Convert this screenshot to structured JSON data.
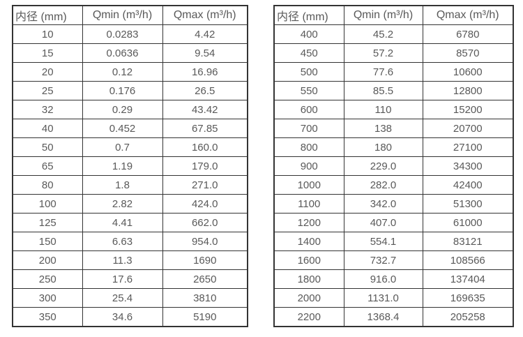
{
  "colors": {
    "background": "#ffffff",
    "border": "#333333",
    "text": "#595959"
  },
  "tables": [
    {
      "name": "spec-table-small-diameters",
      "headers": [
        "内径 (mm)",
        "Qmin (m³/h)",
        "Qmax (m³/h)"
      ],
      "rows": [
        [
          "10",
          "0.0283",
          "4.42"
        ],
        [
          "15",
          "0.0636",
          "9.54"
        ],
        [
          "20",
          "0.12",
          "16.96"
        ],
        [
          "25",
          "0.176",
          "26.5"
        ],
        [
          "32",
          "0.29",
          "43.42"
        ],
        [
          "40",
          "0.452",
          "67.85"
        ],
        [
          "50",
          "0.7",
          "160.0"
        ],
        [
          "65",
          "1.19",
          "179.0"
        ],
        [
          "80",
          "1.8",
          "271.0"
        ],
        [
          "100",
          "2.82",
          "424.0"
        ],
        [
          "125",
          "4.41",
          "662.0"
        ],
        [
          "150",
          "6.63",
          "954.0"
        ],
        [
          "200",
          "11.3",
          "1690"
        ],
        [
          "250",
          "17.6",
          "2650"
        ],
        [
          "300",
          "25.4",
          "3810"
        ],
        [
          "350",
          "34.6",
          "5190"
        ]
      ]
    },
    {
      "name": "spec-table-large-diameters",
      "headers": [
        "内径 (mm)",
        "Qmin (m³/h)",
        "Qmax (m³/h)"
      ],
      "rows": [
        [
          "400",
          "45.2",
          "6780"
        ],
        [
          "450",
          "57.2",
          "8570"
        ],
        [
          "500",
          "77.6",
          "10600"
        ],
        [
          "550",
          "85.5",
          "12800"
        ],
        [
          "600",
          "110",
          "15200"
        ],
        [
          "700",
          "138",
          "20700"
        ],
        [
          "800",
          "180",
          "27100"
        ],
        [
          "900",
          "229.0",
          "34300"
        ],
        [
          "1000",
          "282.0",
          "42400"
        ],
        [
          "1100",
          "342.0",
          "51300"
        ],
        [
          "1200",
          "407.0",
          "61000"
        ],
        [
          "1400",
          "554.1",
          "83121"
        ],
        [
          "1600",
          "732.7",
          "108566"
        ],
        [
          "1800",
          "916.0",
          "137404"
        ],
        [
          "2000",
          "1131.0",
          "169635"
        ],
        [
          "2200",
          "1368.4",
          "205258"
        ]
      ]
    }
  ]
}
